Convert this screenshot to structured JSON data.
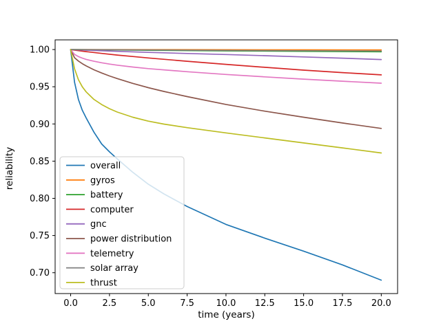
{
  "chart_data": {
    "type": "line",
    "title": "",
    "xlabel": "time (years)",
    "ylabel": "reliability",
    "xlim": [
      -1.0,
      21.05
    ],
    "ylim": [
      0.672,
      1.013
    ],
    "grid": false,
    "legend_position": "lower left",
    "xticks": {
      "values": [
        0,
        2.5,
        5,
        7.5,
        10,
        12.5,
        15,
        17.5,
        20
      ],
      "labels": [
        "0.0",
        "2.5",
        "5.0",
        "7.5",
        "10.0",
        "12.5",
        "15.0",
        "17.5",
        "20.0"
      ]
    },
    "yticks": {
      "values": [
        0.7,
        0.75,
        0.8,
        0.85,
        0.9,
        0.95,
        1.0
      ],
      "labels": [
        "0.70",
        "0.75",
        "0.80",
        "0.85",
        "0.90",
        "0.95",
        "1.00"
      ]
    },
    "series": [
      {
        "name": "overall",
        "color": "#1f77b4",
        "points": [
          [
            0,
            1.0
          ],
          [
            0.25,
            0.956
          ],
          [
            0.5,
            0.933
          ],
          [
            0.75,
            0.9185
          ],
          [
            1,
            0.908
          ],
          [
            1.5,
            0.889
          ],
          [
            2,
            0.873
          ],
          [
            2.5,
            0.8625
          ],
          [
            3,
            0.853
          ],
          [
            4,
            0.835
          ],
          [
            5,
            0.819
          ],
          [
            6,
            0.806
          ],
          [
            7.5,
            0.789
          ],
          [
            10,
            0.765
          ],
          [
            12.5,
            0.7465
          ],
          [
            15,
            0.729
          ],
          [
            17.5,
            0.7105
          ],
          [
            20,
            0.69
          ]
        ]
      },
      {
        "name": "gyros",
        "color": "#ff7f0e",
        "points": [
          [
            0,
            1.0
          ],
          [
            5,
            0.9999
          ],
          [
            10,
            0.9997
          ],
          [
            15,
            0.9996
          ],
          [
            20,
            0.9995
          ]
        ]
      },
      {
        "name": "battery",
        "color": "#2ca02c",
        "points": [
          [
            0,
            1.0
          ],
          [
            5,
            0.999
          ],
          [
            10,
            0.9982
          ],
          [
            15,
            0.9976
          ],
          [
            20,
            0.997
          ]
        ]
      },
      {
        "name": "computer",
        "color": "#d62728",
        "points": [
          [
            0,
            1.0
          ],
          [
            0.5,
            0.9985
          ],
          [
            1,
            0.9972
          ],
          [
            2,
            0.9948
          ],
          [
            3,
            0.9926
          ],
          [
            4,
            0.9906
          ],
          [
            5,
            0.9887
          ],
          [
            7.5,
            0.9843
          ],
          [
            10,
            0.9801
          ],
          [
            12.5,
            0.9761
          ],
          [
            15,
            0.9723
          ],
          [
            17.5,
            0.969
          ],
          [
            20,
            0.966
          ]
        ]
      },
      {
        "name": "gnc",
        "color": "#9467bd",
        "points": [
          [
            0,
            1.0
          ],
          [
            1,
            0.9991
          ],
          [
            2.5,
            0.9979
          ],
          [
            5,
            0.9962
          ],
          [
            7.5,
            0.9947
          ],
          [
            10,
            0.9933
          ],
          [
            12.5,
            0.9917
          ],
          [
            15,
            0.9901
          ],
          [
            17.5,
            0.9884
          ],
          [
            20,
            0.9866
          ]
        ]
      },
      {
        "name": "power distribution",
        "color": "#8c564b",
        "points": [
          [
            0,
            1.0
          ],
          [
            0.25,
            0.989
          ],
          [
            0.5,
            0.9845
          ],
          [
            0.75,
            0.981
          ],
          [
            1,
            0.978
          ],
          [
            1.5,
            0.9728
          ],
          [
            2,
            0.9685
          ],
          [
            2.5,
            0.9645
          ],
          [
            3,
            0.961
          ],
          [
            4,
            0.9545
          ],
          [
            5,
            0.9488
          ],
          [
            6,
            0.9437
          ],
          [
            7.5,
            0.9368
          ],
          [
            10,
            0.9262
          ],
          [
            12.5,
            0.9172
          ],
          [
            15,
            0.909
          ],
          [
            17.5,
            0.9013
          ],
          [
            20,
            0.894
          ]
        ]
      },
      {
        "name": "telemetry",
        "color": "#e377c2",
        "points": [
          [
            0,
            1.0
          ],
          [
            0.25,
            0.9935
          ],
          [
            0.5,
            0.9905
          ],
          [
            0.75,
            0.9885
          ],
          [
            1,
            0.9868
          ],
          [
            1.5,
            0.9843
          ],
          [
            2,
            0.9822
          ],
          [
            2.5,
            0.9805
          ],
          [
            3,
            0.979
          ],
          [
            4,
            0.9765
          ],
          [
            5,
            0.9744
          ],
          [
            7.5,
            0.9702
          ],
          [
            10,
            0.9665
          ],
          [
            12.5,
            0.9633
          ],
          [
            15,
            0.9602
          ],
          [
            17.5,
            0.9575
          ],
          [
            20,
            0.9548
          ]
        ]
      },
      {
        "name": "solar array",
        "color": "#7f7f7f",
        "points": [
          [
            0,
            1.0
          ],
          [
            5,
            0.9994
          ],
          [
            10,
            0.9988
          ],
          [
            15,
            0.9984
          ],
          [
            20,
            0.998
          ]
        ]
      },
      {
        "name": "thrust",
        "color": "#bcbd22",
        "points": [
          [
            0,
            1.0
          ],
          [
            0.25,
            0.974
          ],
          [
            0.5,
            0.9595
          ],
          [
            0.75,
            0.95
          ],
          [
            1,
            0.943
          ],
          [
            1.5,
            0.933
          ],
          [
            2,
            0.926
          ],
          [
            2.5,
            0.9205
          ],
          [
            3,
            0.916
          ],
          [
            4,
            0.909
          ],
          [
            5,
            0.9038
          ],
          [
            6,
            0.8998
          ],
          [
            7.5,
            0.895
          ],
          [
            10,
            0.888
          ],
          [
            12.5,
            0.8812
          ],
          [
            15,
            0.8745
          ],
          [
            17.5,
            0.8678
          ],
          [
            20,
            0.861
          ]
        ]
      }
    ]
  }
}
